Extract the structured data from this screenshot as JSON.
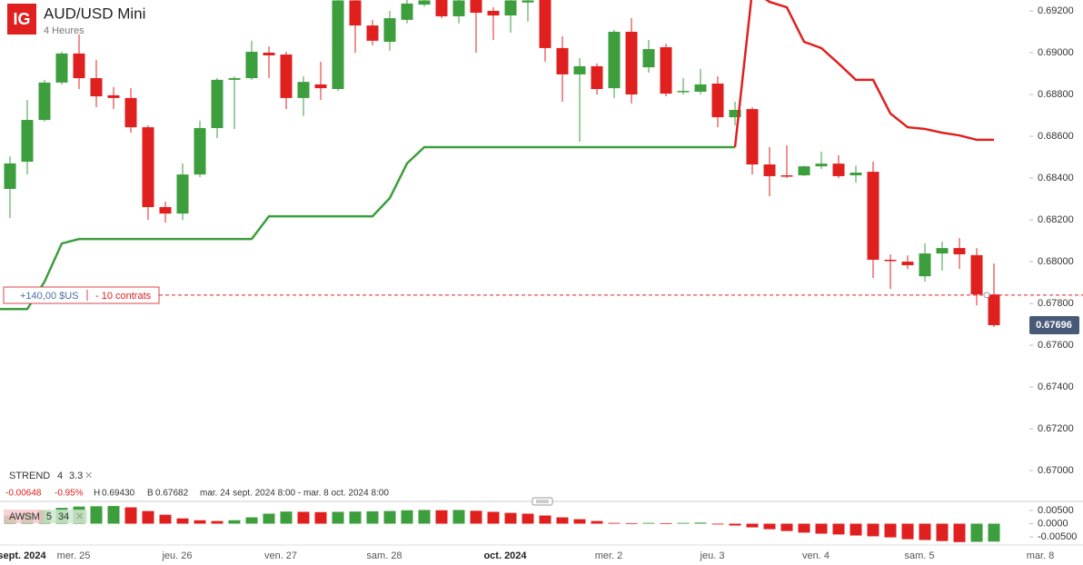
{
  "header": {
    "logo": "IG",
    "title": "AUD/USD Mini",
    "subtitle": "4 Heures"
  },
  "position": {
    "price": 0.6784,
    "pnl": "+140,00 $US",
    "size": "- 10 contrats"
  },
  "last_price": 0.67696,
  "indicators": {
    "strend": {
      "name": "STREND",
      "p1": "4",
      "p2": "3.3"
    },
    "awsm": {
      "name": "AWSM",
      "p1": "5",
      "p2": "34"
    }
  },
  "stats": {
    "change": "-0.00648",
    "change_pct": "-0.95%",
    "high_label": "H",
    "high": "0.69430",
    "low_label": "B",
    "low": "0.67682",
    "range": "mar. 24 sept. 2024 8:00 - mar. 8 oct. 2024 8:00"
  },
  "chart_data": [
    {
      "type": "candlestick",
      "categories": [
        null,
        "sept. 2024",
        null,
        null,
        "mer. 25",
        null,
        null,
        null,
        null,
        null,
        "jeu. 26",
        null,
        null,
        null,
        null,
        null,
        "ven. 27",
        null,
        null,
        null,
        null,
        null,
        "sam. 28",
        null,
        null,
        null,
        null,
        null,
        null,
        "oct. 2024",
        null,
        null,
        null,
        null,
        null,
        "mer. 2",
        null,
        null,
        null,
        null,
        null,
        "jeu. 3",
        null,
        null,
        null,
        null,
        null,
        "ven. 4",
        null,
        null,
        null,
        null,
        null,
        "sam. 5",
        null,
        null,
        null,
        null,
        null,
        null,
        "mar. 8"
      ],
      "open": [
        0.68348,
        0.68478,
        0.68678,
        0.68857,
        0.68996,
        0.68878,
        0.68796,
        0.68783,
        0.68643,
        0.68261,
        0.6823,
        0.68417,
        0.68639,
        0.6887,
        0.68878,
        0.69,
        0.68991,
        0.68783,
        0.68848,
        0.68826,
        0.6925,
        0.6913,
        0.69052,
        0.69157,
        0.6923,
        0.6926,
        0.69174,
        0.6926,
        0.692,
        0.69178,
        0.6924,
        0.6926,
        0.69022,
        0.68896,
        0.68935,
        0.6883,
        0.691,
        0.6893,
        0.69026,
        0.68813,
        0.68813,
        0.68852,
        0.68691,
        0.6873,
        0.68465,
        0.68413,
        0.68413,
        0.68456,
        0.68469,
        0.68413,
        0.6843,
        0.68009,
        0.68,
        0.6793,
        0.68039,
        0.68065,
        0.68031,
        0.67843,
        null,
        null,
        null
      ],
      "high": [
        0.68504,
        0.68774,
        0.6887,
        0.69004,
        0.69087,
        0.68965,
        0.68835,
        0.6883,
        0.68652,
        0.68287,
        0.6847,
        0.68674,
        0.68878,
        0.68887,
        0.69057,
        0.6903,
        0.69004,
        0.68887,
        0.68957,
        0.693,
        0.693,
        0.69157,
        0.692,
        0.6926,
        0.6927,
        0.6928,
        0.6928,
        0.6928,
        0.69217,
        0.6928,
        0.6926,
        0.6928,
        0.69078,
        0.68974,
        0.68948,
        0.69109,
        0.69165,
        0.69061,
        0.69043,
        0.68878,
        0.68922,
        0.68887,
        0.68765,
        0.68739,
        0.68548,
        0.68557,
        0.6846,
        0.68526,
        0.68509,
        0.6846,
        0.68478,
        0.68035,
        0.6803,
        0.68087,
        0.68096,
        0.68113,
        0.68065,
        0.67991,
        null,
        null,
        null
      ],
      "low": [
        0.68209,
        0.68417,
        0.6867,
        0.68848,
        0.68826,
        0.68739,
        0.6873,
        0.68617,
        0.682,
        0.68187,
        0.682,
        0.68404,
        0.68591,
        0.68635,
        0.6887,
        0.68878,
        0.6873,
        0.68696,
        0.68774,
        0.68817,
        0.69,
        0.69035,
        0.69009,
        0.6914,
        0.6922,
        0.69165,
        0.6914,
        0.69,
        0.69061,
        0.69096,
        0.69148,
        0.68957,
        0.68765,
        0.68574,
        0.688,
        0.68783,
        0.68757,
        0.68904,
        0.68791,
        0.688,
        0.688,
        0.68643,
        0.68652,
        0.68417,
        0.68313,
        0.684,
        0.68409,
        0.68443,
        0.684,
        0.68378,
        0.67922,
        0.67869,
        0.67965,
        0.67904,
        0.67957,
        0.67965,
        0.67791,
        0.67687,
        null,
        null,
        null
      ],
      "close": [
        0.6847,
        0.68678,
        0.68857,
        0.68996,
        0.68878,
        0.68791,
        0.68783,
        0.68643,
        0.68261,
        0.6823,
        0.68417,
        0.68639,
        0.6887,
        0.68878,
        0.69004,
        0.68987,
        0.68783,
        0.6886,
        0.6883,
        0.6925,
        0.6913,
        0.69057,
        0.69165,
        0.69235,
        0.6925,
        0.69174,
        0.6925,
        0.69191,
        0.69178,
        0.6925,
        0.6925,
        0.69022,
        0.68896,
        0.68935,
        0.68826,
        0.691,
        0.688,
        0.69017,
        0.68804,
        0.68817,
        0.68848,
        0.68691,
        0.68726,
        0.68465,
        0.68409,
        0.68409,
        0.68456,
        0.68469,
        0.68409,
        0.68426,
        0.68009,
        0.68004,
        0.67983,
        0.68039,
        0.68065,
        0.68035,
        0.67843,
        0.67696,
        null,
        null,
        null
      ],
      "up_color": "#3c9e3c",
      "down_color": "#e0201f",
      "overlays": [
        {
          "color": "#3c9e3c",
          "values": [
            0.67773,
            0.67773,
            0.67904,
            0.68087,
            0.68108,
            0.68108,
            0.68108,
            0.68108,
            0.68108,
            0.68108,
            0.68108,
            0.68108,
            0.68108,
            0.68108,
            0.68108,
            0.68217,
            0.68217,
            0.68217,
            0.68217,
            0.68217,
            0.68217,
            0.68217,
            0.68304,
            0.6847,
            0.68548,
            0.68548,
            0.68548,
            0.68548,
            0.68548,
            0.68548,
            0.68548,
            0.68548,
            0.68548,
            0.68548,
            0.68548,
            0.68548,
            0.68548,
            0.68548,
            0.68548,
            0.68548,
            0.68548,
            0.68548,
            0.68548,
            null,
            null,
            null,
            null,
            null,
            null,
            null,
            null,
            null,
            null,
            null,
            null,
            null,
            null,
            null,
            null,
            null,
            null
          ]
        },
        {
          "color": "#e0201f",
          "values": [
            null,
            null,
            null,
            null,
            null,
            null,
            null,
            null,
            null,
            null,
            null,
            null,
            null,
            null,
            null,
            null,
            null,
            null,
            null,
            null,
            null,
            null,
            null,
            null,
            null,
            null,
            null,
            null,
            null,
            null,
            null,
            null,
            null,
            null,
            null,
            null,
            null,
            null,
            null,
            null,
            null,
            null,
            0.68548,
            0.693,
            0.69243,
            0.69217,
            0.69052,
            0.69022,
            0.68948,
            0.6887,
            0.6887,
            0.68709,
            0.68643,
            0.68635,
            0.68617,
            0.68604,
            0.68583,
            0.68583,
            null,
            null,
            null
          ]
        }
      ],
      "ylim": [
        0.66883,
        0.69252
      ],
      "yticks": [
        {
          "value": 0.692,
          "label": "0.69200"
        },
        {
          "value": 0.69,
          "label": "0.69000"
        },
        {
          "value": 0.688,
          "label": "0.68800"
        },
        {
          "value": 0.686,
          "label": "0.68600"
        },
        {
          "value": 0.684,
          "label": "0.68400"
        },
        {
          "value": 0.682,
          "label": "0.68200"
        },
        {
          "value": 0.68,
          "label": "0.68000"
        },
        {
          "value": 0.678,
          "label": "0.67800"
        },
        {
          "value": 0.676,
          "label": "0.67600"
        },
        {
          "value": 0.674,
          "label": "0.67400"
        },
        {
          "value": 0.672,
          "label": "0.67200"
        },
        {
          "value": 0.67,
          "label": "0.67000"
        }
      ]
    },
    {
      "type": "bar",
      "values": [
        0.003,
        0.004,
        0.005,
        0.006,
        0.0065,
        0.0066,
        0.0067,
        0.0062,
        0.0048,
        0.0034,
        0.002,
        0.0013,
        0.001,
        0.0013,
        0.0024,
        0.0038,
        0.0046,
        0.0045,
        0.0044,
        0.0045,
        0.0046,
        0.0047,
        0.0048,
        0.0051,
        0.0052,
        0.0051,
        0.0052,
        0.0049,
        0.0045,
        0.0041,
        0.0038,
        0.0031,
        0.0024,
        0.0017,
        0.001,
        0.0003,
        0.0002,
        0.0003,
        0.0002,
        0.0003,
        0.0004,
        -0.0003,
        -0.0007,
        -0.0014,
        -0.0021,
        -0.0028,
        -0.0034,
        -0.0038,
        -0.0041,
        -0.0045,
        -0.0048,
        -0.0052,
        -0.0059,
        -0.0062,
        -0.0066,
        -0.007,
        -0.0069,
        -0.0068,
        null,
        null,
        null
      ],
      "up_color": "#3c9e3c",
      "down_color": "#e0201f",
      "ylim": [
        -0.0081,
        0.00845
      ],
      "yticks": [
        {
          "value": 0.005,
          "label": "0.00500"
        },
        {
          "value": 0,
          "label": "0.0000"
        },
        {
          "value": -0.005,
          "label": "-0.00500"
        }
      ]
    }
  ]
}
